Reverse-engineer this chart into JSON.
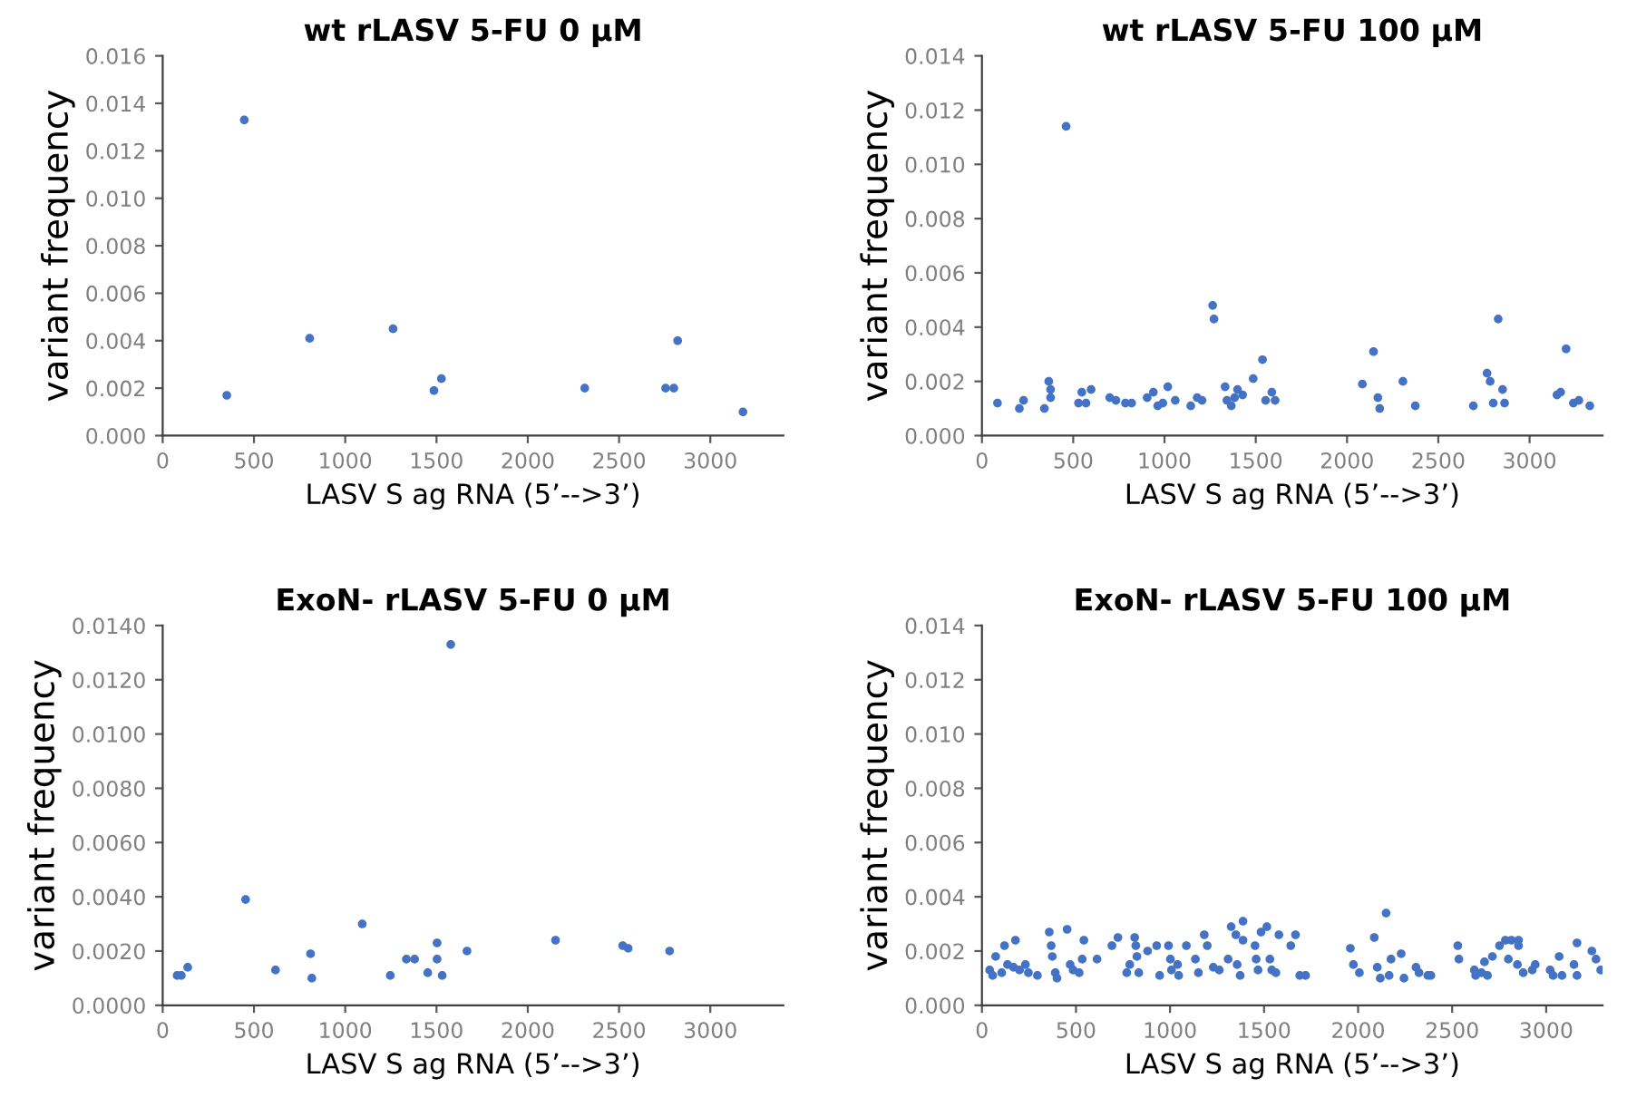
{
  "chart_data": [
    {
      "type": "scatter",
      "title": "wt rLASV 5-FU 0 μM",
      "xlabel": "LASV S ag RNA (5’-->3’)",
      "ylabel": "variant frequency",
      "color": "#4472c4",
      "marker": "circle",
      "x": [
        351,
        447,
        805,
        1262,
        1486,
        1527,
        2312,
        2755,
        2800,
        2821,
        3179
      ],
      "values": [
        0.0017,
        0.0133,
        0.0041,
        0.0045,
        0.0019,
        0.0024,
        0.002,
        0.002,
        0.002,
        0.004,
        0.001
      ],
      "xlim": [
        0,
        3400
      ],
      "xticks": [
        0,
        500,
        1000,
        1500,
        2000,
        2500,
        3000
      ],
      "ylim": [
        0,
        0.016
      ],
      "yticks": [
        {
          "value": 0,
          "label": "0.000"
        },
        {
          "value": 0.002,
          "label": "0.002"
        },
        {
          "value": 0.004,
          "label": "0.004"
        },
        {
          "value": 0.006,
          "label": "0.006"
        },
        {
          "value": 0.008,
          "label": "0.008"
        },
        {
          "value": 0.01,
          "label": "0.010"
        },
        {
          "value": 0.012,
          "label": "0.012"
        },
        {
          "value": 0.014,
          "label": "0.014"
        },
        {
          "value": 0.016,
          "label": "0.016"
        }
      ]
    },
    {
      "type": "scatter",
      "title": "wt rLASV 5-FU 100 μM",
      "xlabel": "LASV S ag RNA (5’-->3’)",
      "ylabel": "variant frequency",
      "color": "#4472c4",
      "marker": "circle",
      "x": [
        85,
        205,
        228,
        342,
        366,
        376,
        376,
        461,
        529,
        547,
        570,
        598,
        700,
        734,
        786,
        820,
        905,
        939,
        963,
        991,
        1018,
        1059,
        1144,
        1179,
        1206,
        1264,
        1271,
        1332,
        1342,
        1366,
        1384,
        1400,
        1428,
        1486,
        1537,
        1554,
        1588,
        1606,
        2084,
        2145,
        2169,
        2179,
        2306,
        2374,
        2692,
        2767,
        2784,
        2801,
        2828,
        2852,
        2863,
        3150,
        3170,
        3200,
        3240,
        3270,
        3330
      ],
      "values": [
        0.0012,
        0.001,
        0.0013,
        0.001,
        0.002,
        0.0017,
        0.0014,
        0.0114,
        0.0012,
        0.0016,
        0.0012,
        0.0017,
        0.0014,
        0.0013,
        0.0012,
        0.0012,
        0.0014,
        0.0016,
        0.0011,
        0.0012,
        0.0018,
        0.0013,
        0.0011,
        0.0014,
        0.0013,
        0.0048,
        0.0043,
        0.0018,
        0.0013,
        0.0011,
        0.0014,
        0.0017,
        0.0015,
        0.0021,
        0.0028,
        0.0013,
        0.0016,
        0.0013,
        0.0019,
        0.0031,
        0.0014,
        0.001,
        0.002,
        0.0011,
        0.0011,
        0.0023,
        0.002,
        0.0012,
        0.0043,
        0.0017,
        0.0012,
        0.0015,
        0.0016,
        0.0032,
        0.0012,
        0.0013,
        0.0011
      ],
      "xlim": [
        0,
        3400
      ],
      "xticks": [
        0,
        500,
        1000,
        1500,
        2000,
        2500,
        3000
      ],
      "ylim": [
        0,
        0.014
      ],
      "yticks": [
        {
          "value": 0,
          "label": "0.000"
        },
        {
          "value": 0.002,
          "label": "0.002"
        },
        {
          "value": 0.004,
          "label": "0.004"
        },
        {
          "value": 0.006,
          "label": "0.006"
        },
        {
          "value": 0.008,
          "label": "0.008"
        },
        {
          "value": 0.01,
          "label": "0.010"
        },
        {
          "value": 0.012,
          "label": "0.012"
        },
        {
          "value": 0.014,
          "label": "0.014"
        }
      ]
    },
    {
      "type": "scatter",
      "title": "ExoN- rLASV 5-FU 0 μM",
      "xlabel": "LASV S ag RNA (5’-->3’)",
      "ylabel": "variant frequency",
      "color": "#4472c4",
      "marker": "circle",
      "x": [
        79,
        102,
        137,
        454,
        618,
        810,
        817,
        1093,
        1247,
        1335,
        1380,
        1452,
        1503,
        1503,
        1531,
        1578,
        1667,
        2152,
        2520,
        2550,
        2777
      ],
      "values": [
        0.0011,
        0.0011,
        0.0014,
        0.0039,
        0.0013,
        0.0019,
        0.001,
        0.003,
        0.0011,
        0.0017,
        0.0017,
        0.0012,
        0.0023,
        0.0017,
        0.0011,
        0.0133,
        0.002,
        0.0024,
        0.0022,
        0.0021,
        0.002
      ],
      "xlim": [
        0,
        3400
      ],
      "xticks": [
        0,
        500,
        1000,
        1500,
        2000,
        2500,
        3000
      ],
      "ylim": [
        0,
        0.014
      ],
      "yticks": [
        {
          "value": 0,
          "label": "0.0000"
        },
        {
          "value": 0.002,
          "label": "0.0020"
        },
        {
          "value": 0.004,
          "label": "0.0040"
        },
        {
          "value": 0.006,
          "label": "0.0060"
        },
        {
          "value": 0.008,
          "label": "0.0080"
        },
        {
          "value": 0.01,
          "label": "0.0100"
        },
        {
          "value": 0.012,
          "label": "0.0120"
        },
        {
          "value": 0.014,
          "label": "0.0140"
        }
      ]
    },
    {
      "type": "scatter",
      "title": "ExoN- rLASV 5-FU 100 μM",
      "xlabel": "LASV S ag RNA (5’-->3’)",
      "ylabel": "variant frequency",
      "color": "#4472c4",
      "marker": "circle",
      "x": [
        41,
        57,
        73,
        105,
        120,
        136,
        168,
        178,
        200,
        231,
        247,
        295,
        358,
        368,
        374,
        390,
        399,
        453,
        469,
        485,
        517,
        533,
        542,
        612,
        691,
        723,
        770,
        786,
        812,
        818,
        824,
        834,
        881,
        929,
        945,
        992,
        1002,
        1008,
        1040,
        1046,
        1087,
        1135,
        1151,
        1182,
        1198,
        1230,
        1262,
        1309,
        1325,
        1350,
        1357,
        1373,
        1388,
        1388,
        1452,
        1458,
        1468,
        1484,
        1515,
        1531,
        1541,
        1563,
        1579,
        1642,
        1667,
        1690,
        1721,
        1959,
        1975,
        2007,
        2086,
        2102,
        2118,
        2149,
        2165,
        2175,
        2229,
        2244,
        2308,
        2324,
        2371,
        2387,
        2530,
        2536,
        2618,
        2625,
        2656,
        2672,
        2688,
        2714,
        2752,
        2783,
        2799,
        2815,
        2847,
        2853,
        2853,
        2878,
        2926,
        2942,
        3021,
        3037,
        3069,
        3084,
        3148,
        3164,
        3164,
        3243,
        3265,
        3290
      ],
      "values": [
        0.0013,
        0.0011,
        0.0018,
        0.0012,
        0.0022,
        0.0015,
        0.0014,
        0.0024,
        0.0013,
        0.0015,
        0.0012,
        0.0011,
        0.0027,
        0.0022,
        0.0018,
        0.0012,
        0.001,
        0.0028,
        0.0015,
        0.0013,
        0.0012,
        0.0017,
        0.0024,
        0.0017,
        0.0022,
        0.0025,
        0.0012,
        0.0015,
        0.0025,
        0.0022,
        0.0018,
        0.0012,
        0.002,
        0.0022,
        0.0011,
        0.0022,
        0.0017,
        0.0013,
        0.0015,
        0.0011,
        0.0022,
        0.0017,
        0.0012,
        0.0026,
        0.0022,
        0.0014,
        0.0013,
        0.0017,
        0.0029,
        0.0026,
        0.0015,
        0.0011,
        0.0031,
        0.0024,
        0.0022,
        0.0017,
        0.0013,
        0.0027,
        0.0029,
        0.0017,
        0.0013,
        0.0012,
        0.0026,
        0.0022,
        0.0026,
        0.0011,
        0.0011,
        0.0021,
        0.0015,
        0.0012,
        0.0025,
        0.0014,
        0.001,
        0.0034,
        0.0011,
        0.0017,
        0.0019,
        0.001,
        0.0014,
        0.0012,
        0.0011,
        0.0011,
        0.0022,
        0.0017,
        0.0013,
        0.0011,
        0.0012,
        0.0016,
        0.0011,
        0.0018,
        0.0022,
        0.0024,
        0.0017,
        0.0024,
        0.0015,
        0.0024,
        0.0022,
        0.0012,
        0.0013,
        0.0015,
        0.0013,
        0.0011,
        0.0018,
        0.0011,
        0.0015,
        0.0023,
        0.0011,
        0.002,
        0.0017,
        0.0013
      ],
      "xlim": [
        0,
        3300
      ],
      "xticks": [
        0,
        500,
        1000,
        1500,
        2000,
        2500,
        3000
      ],
      "ylim": [
        0,
        0.014
      ],
      "yticks": [
        {
          "value": 0,
          "label": "0.000"
        },
        {
          "value": 0.002,
          "label": "0.002"
        },
        {
          "value": 0.004,
          "label": "0.004"
        },
        {
          "value": 0.006,
          "label": "0.006"
        },
        {
          "value": 0.008,
          "label": "0.008"
        },
        {
          "value": 0.01,
          "label": "0.010"
        },
        {
          "value": 0.012,
          "label": "0.012"
        },
        {
          "value": 0.014,
          "label": "0.014"
        }
      ]
    }
  ]
}
